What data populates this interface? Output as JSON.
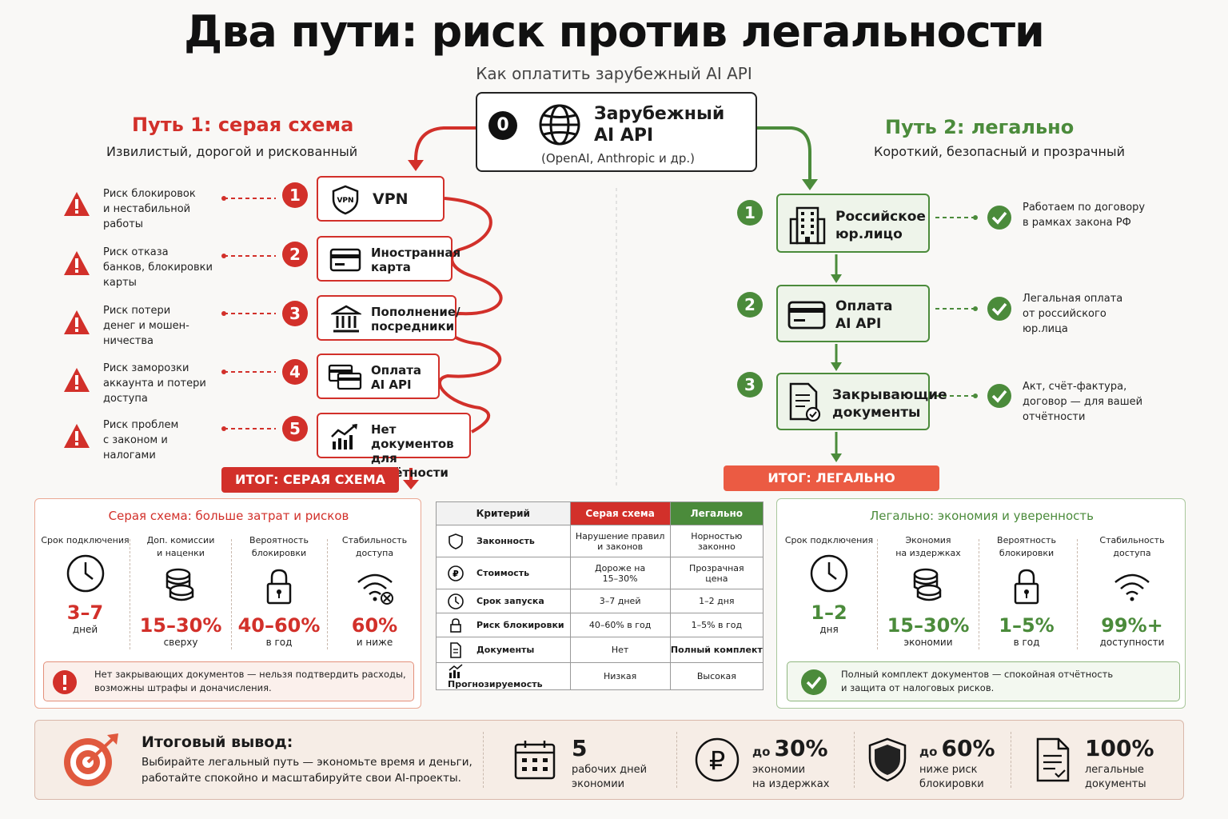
{
  "title": "Два пути: риск против легальности",
  "subtitle": "Как оплатить зарубежный AI API",
  "source": {
    "number": "0",
    "title_line1": "Зарубежный",
    "title_line2": "AI API",
    "note": "(OpenAI, Anthropic и др.)",
    "icon": "globe-icon"
  },
  "path1": {
    "title": "Путь 1: серая схема",
    "subtitle": "Извилистый, дорогой и рискованный",
    "color": "#d2302a",
    "steps": [
      {
        "num": "1",
        "label_line1": "VPN",
        "label_line2": "",
        "icon": "vpn-shield-icon",
        "risk": [
          "Риск блокировок",
          "и нестабильной",
          "работы"
        ]
      },
      {
        "num": "2",
        "label_line1": "Иностранная",
        "label_line2": "карта",
        "icon": "credit-card-icon",
        "risk": [
          "Риск отказа",
          "банков, блокировки",
          "карты"
        ]
      },
      {
        "num": "3",
        "label_line1": "Пополнение/",
        "label_line2": "посредники",
        "icon": "bank-icon",
        "risk": [
          "Риск потери",
          "денег и мошен-",
          "ничества"
        ]
      },
      {
        "num": "4",
        "label_line1": "Оплата",
        "label_line2": "AI API",
        "icon": "cards-icon",
        "risk": [
          "Риск заморозки",
          "аккаунта и потери",
          "доступа"
        ]
      },
      {
        "num": "5",
        "label_line1": "Нет документов",
        "label_line2": "для отчётности",
        "icon": "chart-icon",
        "risk": [
          "Риск проблем",
          "с законом и",
          "налогами"
        ]
      }
    ],
    "result": "ИТОГ: СЕРАЯ СХЕМА"
  },
  "path2": {
    "title": "Путь 2: легально",
    "subtitle": "Короткий, безопасный и прозрачный",
    "color": "#4b8b3b",
    "steps": [
      {
        "num": "1",
        "label_line1": "Российское",
        "label_line2": "юр.лицо",
        "icon": "building-icon",
        "ok": [
          "Работаем по договору",
          "в рамках закона РФ"
        ]
      },
      {
        "num": "2",
        "label_line1": "Оплата",
        "label_line2": "AI API",
        "icon": "credit-card-icon",
        "ok": [
          "Легальная оплата",
          "от российского",
          "юр.лица"
        ]
      },
      {
        "num": "3",
        "label_line1": "Закрывающие",
        "label_line2": "документы",
        "icon": "document-check-icon",
        "ok": [
          "Акт, счёт-фактура,",
          "договор — для вашей",
          "отчётности"
        ]
      }
    ],
    "result": "ИТОГ: ЛЕГАЛЬНО"
  },
  "gray_panel": {
    "heading": "Серая схема: больше затрат и рисков",
    "metrics": [
      {
        "label": [
          "Срок подключения",
          ""
        ],
        "value": "3–7",
        "unit": "дней",
        "icon": "clock-icon"
      },
      {
        "label": [
          "Доп. комиссии",
          "и наценки"
        ],
        "value": "15–30%",
        "unit": "сверху",
        "icon": "coins-icon"
      },
      {
        "label": [
          "Вероятность",
          "блокировки"
        ],
        "value": "40–60%",
        "unit": "в год",
        "icon": "lock-icon"
      },
      {
        "label": [
          "Стабильность",
          "доступа"
        ],
        "value": "60%",
        "unit": "и ниже",
        "icon": "wifi-off-icon"
      }
    ],
    "note": [
      "Нет закрывающих документов — нельзя подтвердить расходы,",
      "возможны штрафы и доначисления."
    ]
  },
  "legal_panel": {
    "heading": "Легально: экономия и уверенность",
    "metrics": [
      {
        "label": [
          "Срок подключения",
          ""
        ],
        "value": "1–2",
        "unit": "дня",
        "icon": "clock-icon"
      },
      {
        "label": [
          "Экономия",
          "на издержках"
        ],
        "value": "15–30%",
        "unit": "экономии",
        "icon": "coins-icon"
      },
      {
        "label": [
          "Вероятность",
          "блокировки"
        ],
        "value": "1–5%",
        "unit": "в год",
        "icon": "lock-icon"
      },
      {
        "label": [
          "Стабильность",
          "доступа"
        ],
        "value": "99%+",
        "unit": "доступности",
        "icon": "wifi-icon"
      }
    ],
    "note": [
      "Полный комплект документов — спокойная отчётность",
      "и защита от налоговых рисков."
    ]
  },
  "comparison": {
    "headers": [
      "Критерий",
      "Серая схема",
      "Легально"
    ],
    "rows": [
      {
        "icon": "shield-icon",
        "criterion": "Законность",
        "gray": [
          "Нарушение правил",
          "и законов"
        ],
        "legal": [
          "Норностью",
          "законно"
        ]
      },
      {
        "icon": "ruble-icon",
        "criterion": "Стоимость",
        "gray": [
          "Дороже на",
          "15–30%"
        ],
        "legal": [
          "Прозрачная",
          "цена"
        ]
      },
      {
        "icon": "clock-icon",
        "criterion": "Срок запуска",
        "gray": [
          "3–7 дней",
          ""
        ],
        "legal": [
          "1–2 дня",
          ""
        ]
      },
      {
        "icon": "lock-icon",
        "criterion": "Риск блокировки",
        "gray": [
          "40–60% в год",
          ""
        ],
        "legal": [
          "1–5% в год",
          ""
        ]
      },
      {
        "icon": "document-icon",
        "criterion": "Документы",
        "gray": [
          "Нет",
          ""
        ],
        "legal": [
          "Полный комплект",
          ""
        ]
      },
      {
        "icon": "chart-icon",
        "criterion": "Прогнозируемость",
        "gray": [
          "Низкая",
          ""
        ],
        "legal": [
          "Высокая",
          ""
        ]
      }
    ]
  },
  "conclusion": {
    "title": "Итоговый вывод:",
    "text": [
      "Выбирайте легальный путь — экономьте время и деньги,",
      "работайте спокойно и масштабируйте свои AI-проекты."
    ],
    "icon": "target-icon",
    "stats": [
      {
        "icon": "calendar-icon",
        "prefix": "",
        "value": "5",
        "caption": [
          "рабочих дней",
          "экономии"
        ]
      },
      {
        "icon": "ruble-icon",
        "prefix": "до",
        "value": "30%",
        "caption": [
          "экономии",
          "на издержках"
        ]
      },
      {
        "icon": "shield-icon",
        "prefix": "до",
        "value": "60%",
        "caption": [
          "ниже риск",
          "блокировки"
        ]
      },
      {
        "icon": "document-icon",
        "prefix": "",
        "value": "100%",
        "caption": [
          "легальные",
          "документы"
        ]
      }
    ]
  }
}
